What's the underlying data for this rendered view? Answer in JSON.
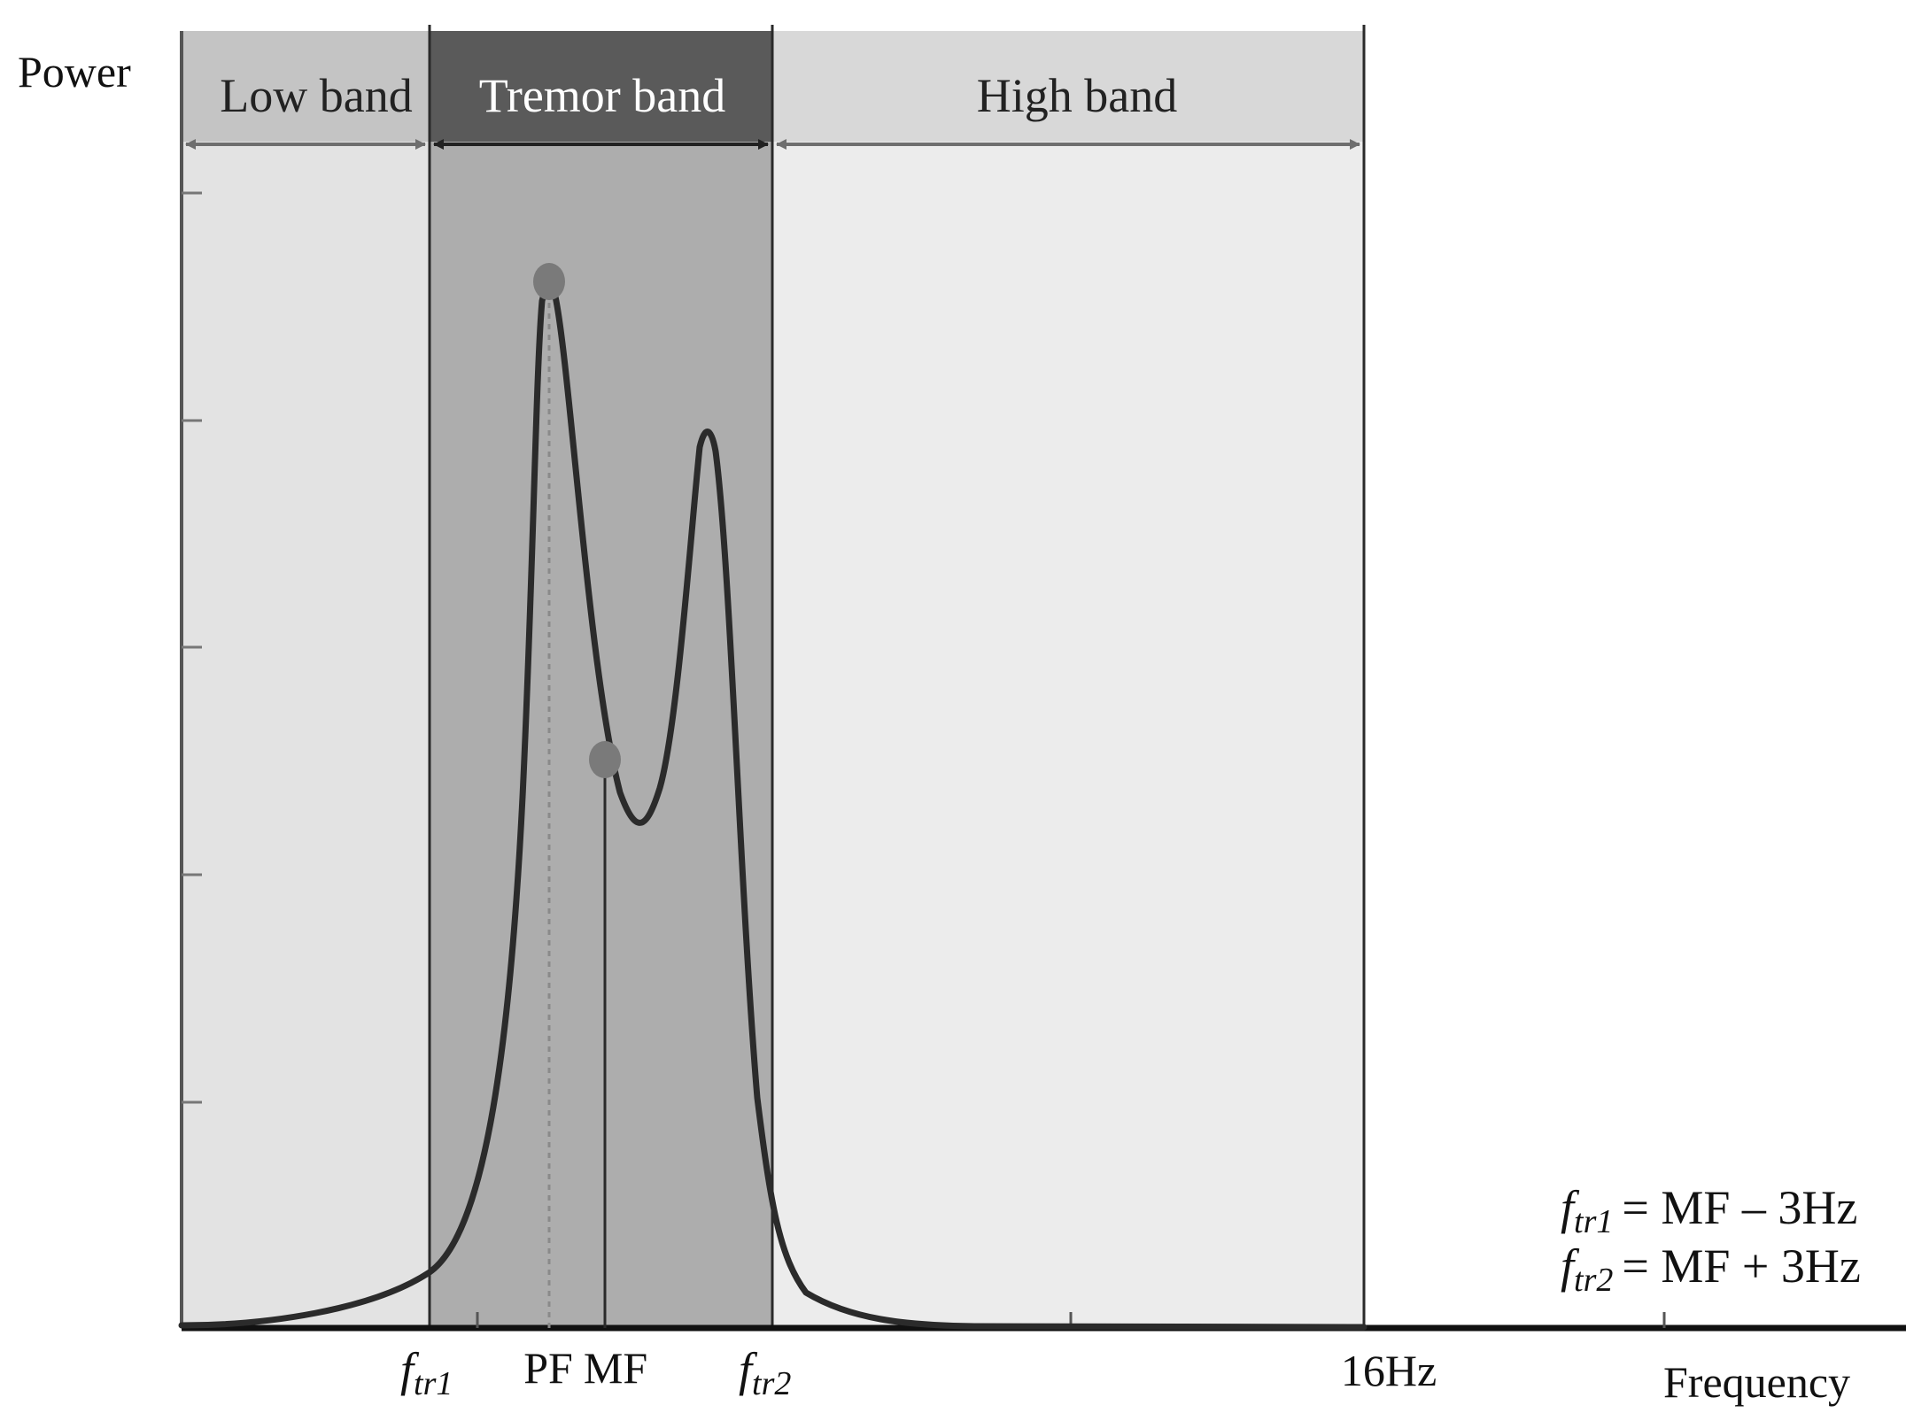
{
  "axis": {
    "y_label": "Power",
    "x_label": "Frequency"
  },
  "bands": {
    "low": {
      "label": "Low band",
      "fill": "#e3e3e3",
      "header_fill": "#c4c4c4"
    },
    "tremor": {
      "label": "Tremor band",
      "fill": "#adadad",
      "header_fill": "#5a5a5a"
    },
    "high": {
      "label": "High band",
      "fill": "#ececec",
      "header_fill": "#d8d8d8"
    }
  },
  "x_ticks": {
    "ftr1": {
      "symbol": "f",
      "subscript": "tr1"
    },
    "pf": "PF",
    "mf": "MF",
    "ftr2": {
      "symbol": "f",
      "subscript": "tr2"
    },
    "hz16": "16Hz"
  },
  "formulas": {
    "ftr1": {
      "symbol": "f",
      "subscript": "tr1",
      "rhs": "= MF – 3Hz"
    },
    "ftr2": {
      "symbol": "f",
      "subscript": "tr2",
      "rhs": "= MF + 3Hz"
    }
  },
  "markers": {
    "peak_frequency": "PF",
    "median_frequency": "MF"
  },
  "colors": {
    "curve": "#2b2b2b",
    "marker": "#7a7a7a",
    "axis": "#111111"
  }
}
